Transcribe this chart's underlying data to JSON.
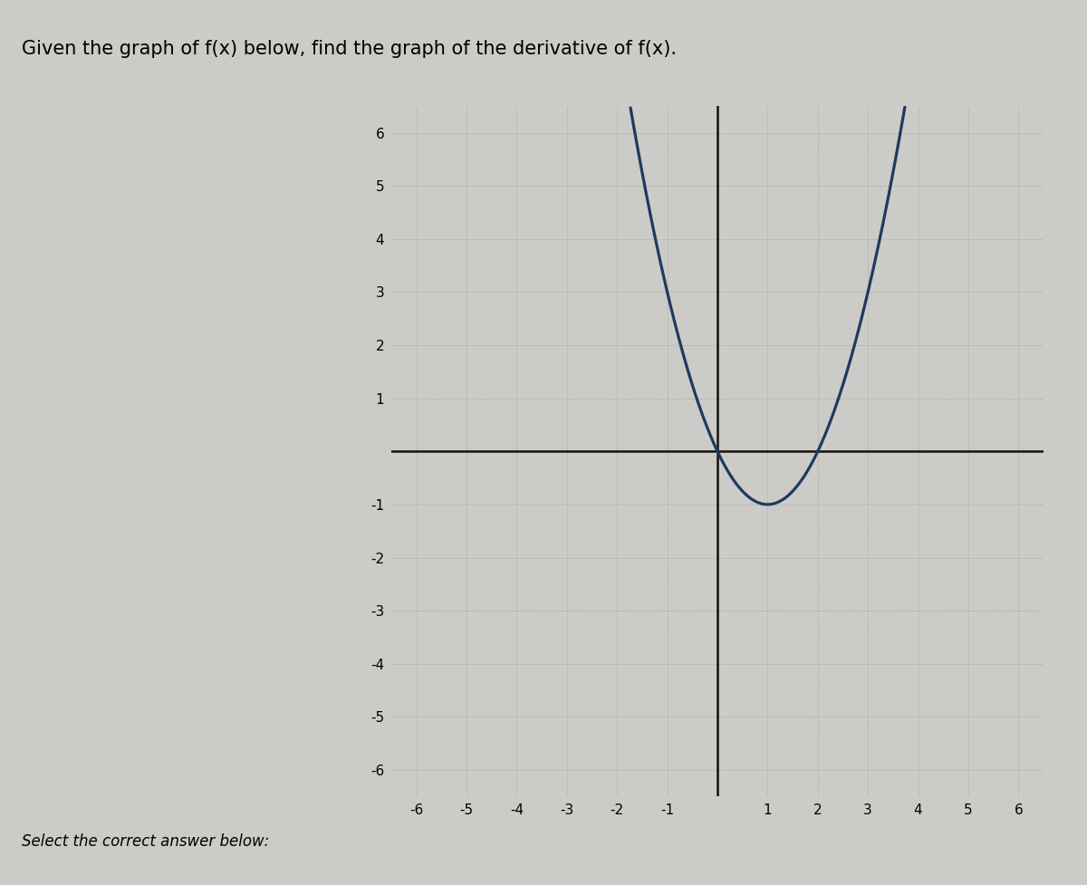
{
  "title": "Given the graph of f(x) below, find the graph of the derivative of f(x).",
  "subtitle": "Select the correct answer below:",
  "xlim": [
    -6.5,
    6.5
  ],
  "ylim": [
    -6.5,
    6.5
  ],
  "xtick_vals": [
    -6,
    -5,
    -4,
    -3,
    -2,
    -1,
    1,
    2,
    3,
    4,
    5,
    6
  ],
  "ytick_vals": [
    -6,
    -5,
    -4,
    -3,
    -2,
    -1,
    1,
    2,
    3,
    4,
    5,
    6
  ],
  "curve_color": "#1e3a5f",
  "curve_linewidth": 2.3,
  "background_color": "#cccbc8",
  "axes_color": "#111111",
  "grid_color": "#777777",
  "grid_alpha": 0.55,
  "grid_linestyle": ":",
  "grid_linewidth": 0.6,
  "vertex_x": 1.0,
  "vertex_y": -1.0,
  "a_coeff": 1.0,
  "title_fontsize": 15,
  "subtitle_fontsize": 12,
  "tick_fontsize": 11,
  "axes_linewidth": 1.8
}
